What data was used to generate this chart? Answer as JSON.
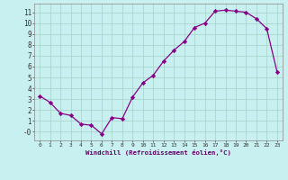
{
  "x": [
    0,
    1,
    2,
    3,
    4,
    5,
    6,
    7,
    8,
    9,
    10,
    11,
    12,
    13,
    14,
    15,
    16,
    17,
    18,
    19,
    20,
    21,
    22,
    23
  ],
  "y": [
    3.3,
    2.7,
    1.7,
    1.5,
    0.7,
    0.6,
    -0.2,
    1.3,
    1.2,
    3.2,
    4.5,
    5.2,
    6.5,
    7.5,
    8.3,
    9.6,
    10.0,
    11.1,
    11.2,
    11.1,
    11.0,
    10.4,
    9.5,
    5.5
  ],
  "line_color": "#880088",
  "marker": "D",
  "marker_size": 2.2,
  "bg_color": "#c8f0f0",
  "grid_color": "#a8d8cc",
  "xlabel": "Windchill (Refroidissement éolien,°C)",
  "xlim": [
    -0.5,
    23.5
  ],
  "ylim": [
    -0.8,
    11.8
  ],
  "yticks": [
    0,
    1,
    2,
    3,
    4,
    5,
    6,
    7,
    8,
    9,
    10,
    11
  ],
  "ytick_labels": [
    "-0",
    "1",
    "2",
    "3",
    "4",
    "5",
    "6",
    "7",
    "8",
    "9",
    "10",
    "11"
  ],
  "xticks": [
    0,
    1,
    2,
    3,
    4,
    5,
    6,
    7,
    8,
    9,
    10,
    11,
    12,
    13,
    14,
    15,
    16,
    17,
    18,
    19,
    20,
    21,
    22,
    23
  ]
}
